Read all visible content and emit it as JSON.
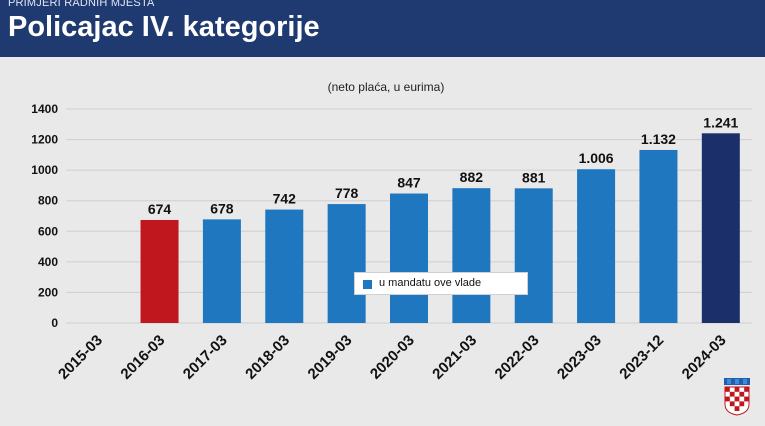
{
  "header": {
    "section": "PRIMJERI RADNIH MJESTA",
    "title": "Policajac IV. kategorije"
  },
  "colors": {
    "header_bg": "#1f3a70",
    "bar_default": "#1f77c0",
    "bar_first": "#c0161d",
    "bar_last": "#1b2f6b",
    "grid": "#cfcfcf"
  },
  "legend": {
    "label": "u mandatu ove vlade"
  },
  "chart_data": {
    "type": "bar",
    "subtitle": "(neto plaća, u eurima)",
    "categories": [
      "2015-03",
      "2016-03",
      "2017-03",
      "2018-03",
      "2019-03",
      "2020-03",
      "2021-03",
      "2022-03",
      "2023-03",
      "2023-12",
      "2024-03"
    ],
    "values": [
      null,
      674,
      678,
      742,
      778,
      847,
      882,
      881,
      1006,
      1132,
      1241
    ],
    "value_labels": [
      "",
      "674",
      "678",
      "742",
      "778",
      "847",
      "882",
      "881",
      "1.006",
      "1.132",
      "1.241"
    ],
    "ylim": [
      0,
      1400
    ],
    "yticks": [
      0,
      200,
      400,
      600,
      800,
      1000,
      1200,
      1400
    ],
    "grid": true,
    "legend_placement": "center"
  }
}
